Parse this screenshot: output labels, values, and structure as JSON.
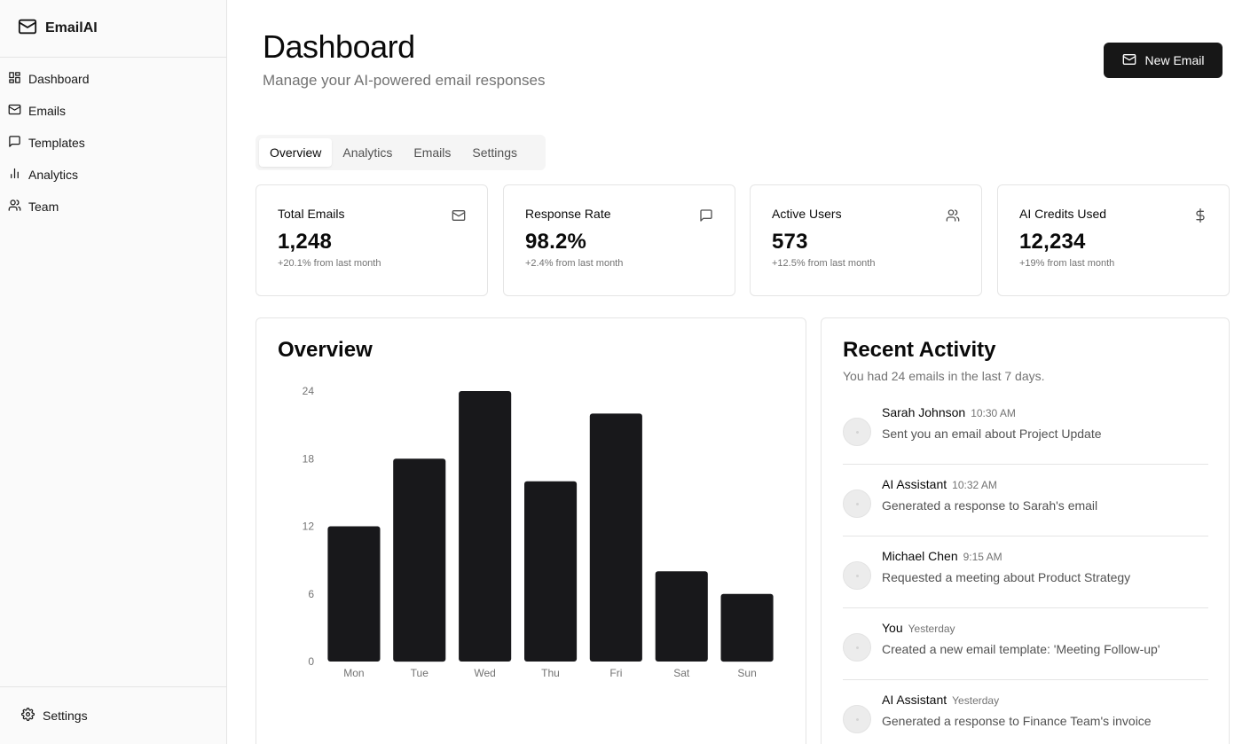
{
  "brand": {
    "name": "EmailAI"
  },
  "sidebar": {
    "items": [
      {
        "label": "Dashboard",
        "icon": "layout-grid-icon"
      },
      {
        "label": "Emails",
        "icon": "mail-icon"
      },
      {
        "label": "Templates",
        "icon": "message-square-icon"
      },
      {
        "label": "Analytics",
        "icon": "bar-chart-icon"
      },
      {
        "label": "Team",
        "icon": "users-icon"
      }
    ],
    "footer": {
      "label": "Settings",
      "icon": "gear-icon"
    }
  },
  "header": {
    "title": "Dashboard",
    "subtitle": "Manage your AI-powered email responses",
    "new_email_label": "New Email"
  },
  "tabs": [
    {
      "label": "Overview",
      "active": true
    },
    {
      "label": "Analytics",
      "active": false
    },
    {
      "label": "Emails",
      "active": false
    },
    {
      "label": "Settings",
      "active": false
    }
  ],
  "stats": [
    {
      "label": "Total Emails",
      "value": "1,248",
      "change": "+20.1% from last month",
      "icon": "mail-icon"
    },
    {
      "label": "Response Rate",
      "value": "98.2%",
      "change": "+2.4% from last month",
      "icon": "message-square-icon"
    },
    {
      "label": "Active Users",
      "value": "573",
      "change": "+12.5% from last month",
      "icon": "users-icon"
    },
    {
      "label": "AI Credits Used",
      "value": "12,234",
      "change": "+19% from last month",
      "icon": "dollar-icon"
    }
  ],
  "overview": {
    "title": "Overview"
  },
  "chart_data": {
    "type": "bar",
    "title": "Overview",
    "categories": [
      "Mon",
      "Tue",
      "Wed",
      "Thu",
      "Fri",
      "Sat",
      "Sun"
    ],
    "values": [
      12,
      18,
      24,
      16,
      22,
      8,
      6
    ],
    "ylim": [
      0,
      24
    ],
    "yticks": [
      0,
      6,
      12,
      18,
      24
    ],
    "grid": false,
    "bar_color": "#18181b"
  },
  "activity": {
    "title": "Recent Activity",
    "subtitle": "You had 24 emails in the last 7 days.",
    "items": [
      {
        "name": "Sarah Johnson",
        "time": "10:30 AM",
        "desc": "Sent you an email about Project Update"
      },
      {
        "name": "AI Assistant",
        "time": "10:32 AM",
        "desc": "Generated a response to Sarah's email"
      },
      {
        "name": "Michael Chen",
        "time": "9:15 AM",
        "desc": "Requested a meeting about Product Strategy"
      },
      {
        "name": "You",
        "time": "Yesterday",
        "desc": "Created a new email template: 'Meeting Follow-up'"
      },
      {
        "name": "AI Assistant",
        "time": "Yesterday",
        "desc": "Generated a response to Finance Team's invoice"
      }
    ]
  },
  "colors": {
    "primary": "#171717",
    "muted": "#737373",
    "border": "#e5e5e5",
    "sidebar_bg": "#fafafa"
  }
}
